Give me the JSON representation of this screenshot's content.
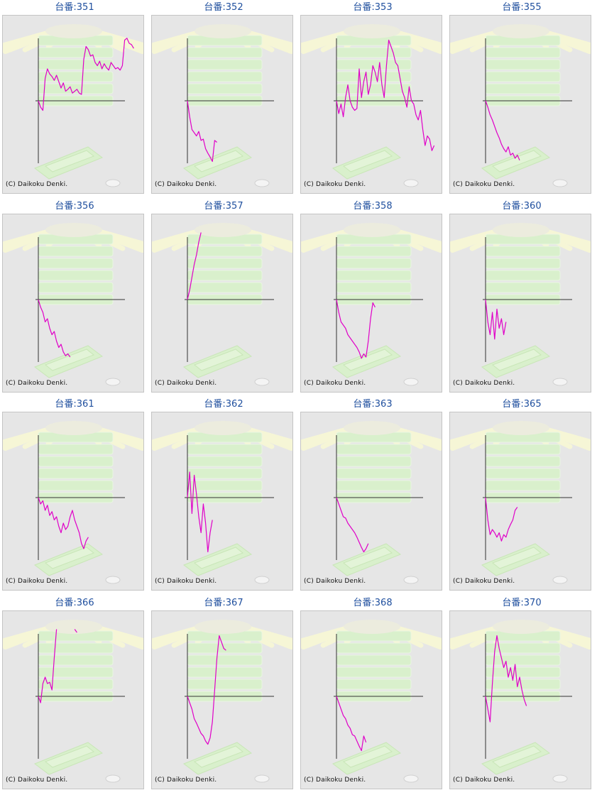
{
  "colors": {
    "background": "#e6e6e6",
    "line": "#e000c8",
    "axis": "#333333",
    "title": "#1f4f9e",
    "deco_green": "#d9f0cc",
    "deco_ray": "#f6f6d6"
  },
  "copyright": "(C) Daikoku Denki.",
  "machines": [
    {
      "label": "台番:351",
      "chart_data": {
        "type": "line",
        "values": [
          0,
          -0.1,
          -0.15,
          0.35,
          0.5,
          0.42,
          0.38,
          0.32,
          0.4,
          0.3,
          0.2,
          0.28,
          0.15,
          0.18,
          0.22,
          0.12,
          0.15,
          0.18,
          0.12,
          0.1,
          0.65,
          0.85,
          0.8,
          0.7,
          0.72,
          0.6,
          0.55,
          0.62,
          0.5,
          0.58,
          0.52,
          0.48,
          0.6,
          0.55,
          0.5,
          0.52,
          0.48,
          0.55,
          0.95,
          0.98,
          0.9,
          0.88,
          0.82
        ]
      }
    },
    {
      "label": "台番:352",
      "chart_data": {
        "type": "line",
        "values": [
          0,
          -0.25,
          -0.45,
          -0.5,
          -0.55,
          -0.48,
          -0.62,
          -0.6,
          -0.75,
          -0.82,
          -0.88,
          -0.95,
          -0.62,
          -0.65
        ]
      }
    },
    {
      "label": "台番:353",
      "chart_data": {
        "type": "line",
        "values": [
          0,
          -0.2,
          -0.05,
          -0.25,
          0.05,
          0.25,
          0.0,
          -0.1,
          -0.15,
          -0.12,
          0.5,
          0.05,
          0.3,
          0.45,
          0.1,
          0.25,
          0.55,
          0.45,
          0.3,
          0.6,
          0.25,
          0.05,
          0.55,
          0.95,
          0.85,
          0.75,
          0.6,
          0.55,
          0.35,
          0.15,
          0.05,
          -0.1,
          0.22,
          0.0,
          -0.05,
          -0.22,
          -0.3,
          -0.15,
          -0.45,
          -0.7,
          -0.55,
          -0.6,
          -0.78,
          -0.7
        ]
      }
    },
    {
      "label": "台番:355",
      "chart_data": {
        "type": "line",
        "values": [
          0,
          -0.1,
          -0.22,
          -0.3,
          -0.4,
          -0.5,
          -0.58,
          -0.68,
          -0.75,
          -0.8,
          -0.72,
          -0.85,
          -0.82,
          -0.9,
          -0.85,
          -0.93
        ]
      }
    },
    {
      "label": "台番:356",
      "chart_data": {
        "type": "line",
        "values": [
          0,
          -0.12,
          -0.2,
          -0.35,
          -0.3,
          -0.45,
          -0.55,
          -0.5,
          -0.65,
          -0.75,
          -0.7,
          -0.82,
          -0.88,
          -0.85,
          -0.9
        ]
      }
    },
    {
      "label": "台番:357",
      "chart_data": {
        "type": "line",
        "values": [
          0,
          0.15,
          0.35,
          0.55,
          0.7,
          0.9,
          1.05
        ]
      }
    },
    {
      "label": "台番:358",
      "chart_data": {
        "type": "line",
        "values": [
          0,
          -0.2,
          -0.35,
          -0.4,
          -0.45,
          -0.55,
          -0.6,
          -0.65,
          -0.7,
          -0.75,
          -0.82,
          -0.92,
          -0.85,
          -0.9,
          -0.65,
          -0.3,
          -0.05,
          -0.12
        ]
      }
    },
    {
      "label": "台番:360",
      "chart_data": {
        "type": "line",
        "values": [
          0,
          -0.35,
          -0.55,
          -0.2,
          -0.62,
          -0.15,
          -0.45,
          -0.3,
          -0.55,
          -0.35
        ]
      }
    },
    {
      "label": "台番:361",
      "chart_data": {
        "type": "line",
        "values": [
          0,
          -0.1,
          -0.05,
          -0.2,
          -0.12,
          -0.28,
          -0.22,
          -0.35,
          -0.3,
          -0.45,
          -0.55,
          -0.4,
          -0.5,
          -0.45,
          -0.3,
          -0.2,
          -0.35,
          -0.45,
          -0.55,
          -0.72,
          -0.8,
          -0.68,
          -0.62
        ]
      }
    },
    {
      "label": "台番:362",
      "chart_data": {
        "type": "line",
        "values": [
          0,
          0.4,
          -0.25,
          0.35,
          0.05,
          -0.3,
          -0.55,
          -0.1,
          -0.4,
          -0.85,
          -0.55,
          -0.35
        ]
      }
    },
    {
      "label": "台番:363",
      "chart_data": {
        "type": "line",
        "values": [
          0,
          -0.1,
          -0.2,
          -0.3,
          -0.32,
          -0.4,
          -0.45,
          -0.5,
          -0.55,
          -0.62,
          -0.7,
          -0.78,
          -0.85,
          -0.8,
          -0.72
        ]
      }
    },
    {
      "label": "台番:365",
      "chart_data": {
        "type": "line",
        "values": [
          0,
          -0.35,
          -0.58,
          -0.5,
          -0.55,
          -0.62,
          -0.55,
          -0.68,
          -0.58,
          -0.62,
          -0.5,
          -0.42,
          -0.35,
          -0.2,
          -0.15
        ]
      }
    },
    {
      "label": "台番:366",
      "chart_data": {
        "type": "line",
        "values": [
          0,
          -0.1,
          0.2,
          0.3,
          0.2,
          0.22,
          0.1,
          0.6,
          1.05,
          null,
          null,
          null,
          null,
          null,
          null,
          null,
          1.05,
          1.0
        ]
      }
    },
    {
      "label": "台番:367",
      "chart_data": {
        "type": "line",
        "values": [
          0,
          -0.1,
          -0.2,
          -0.35,
          -0.42,
          -0.5,
          -0.58,
          -0.62,
          -0.7,
          -0.75,
          -0.65,
          -0.4,
          0.1,
          0.6,
          0.95,
          0.85,
          0.75,
          0.72
        ]
      }
    },
    {
      "label": "台番:368",
      "chart_data": {
        "type": "line",
        "values": [
          0,
          -0.1,
          -0.2,
          -0.3,
          -0.35,
          -0.45,
          -0.5,
          -0.6,
          -0.62,
          -0.7,
          -0.78,
          -0.85,
          -0.62,
          -0.72
        ]
      }
    },
    {
      "label": "台番:370",
      "chart_data": {
        "type": "line",
        "values": [
          0,
          -0.2,
          -0.4,
          0.2,
          0.7,
          0.95,
          0.75,
          0.6,
          0.45,
          0.55,
          0.3,
          0.45,
          0.25,
          0.5,
          0.15,
          0.3,
          0.1,
          -0.05,
          -0.15
        ]
      }
    }
  ]
}
